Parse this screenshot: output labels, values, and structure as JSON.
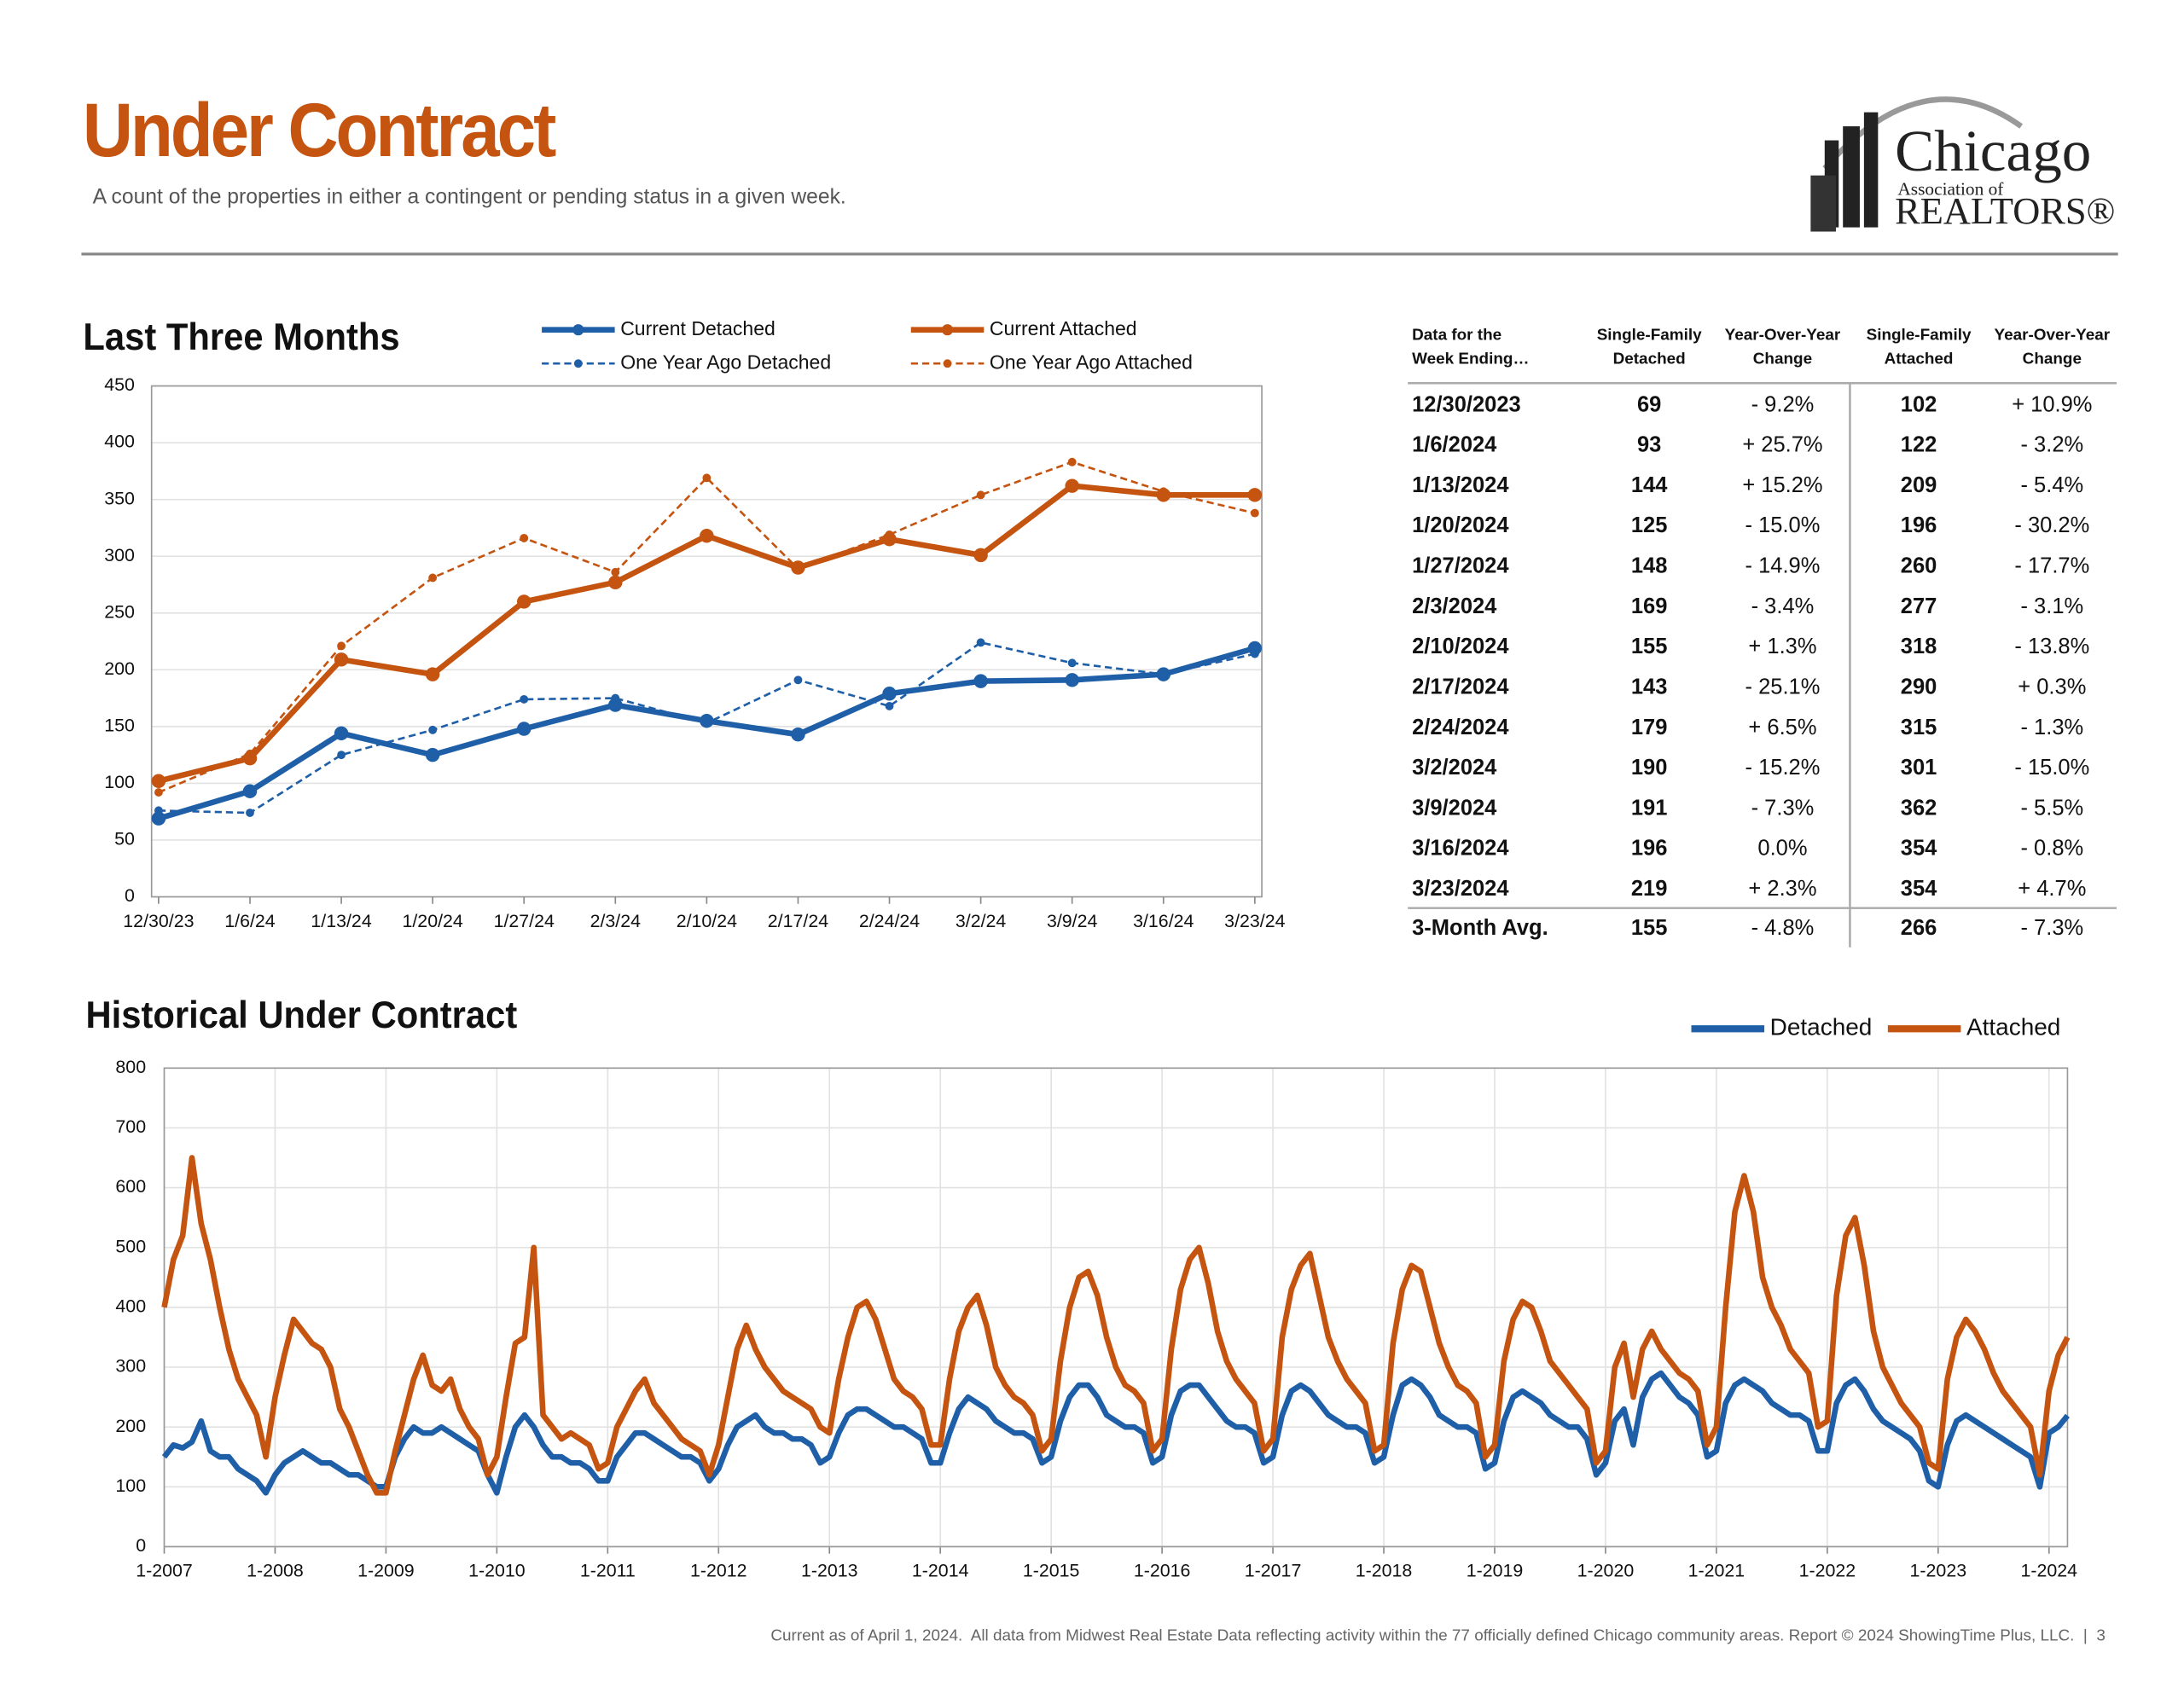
{
  "header": {
    "title": "Under Contract",
    "subtitle": "A count of the properties in either a contingent or pending status in a given week."
  },
  "logo": {
    "name": "Chicago",
    "line2": "Association of",
    "line3": "REALTORS®"
  },
  "chart_data": [
    {
      "type": "line",
      "title": "Last Three Months",
      "categories": [
        "12/30/23",
        "1/6/24",
        "1/13/24",
        "1/20/24",
        "1/27/24",
        "2/3/24",
        "2/10/24",
        "2/17/24",
        "2/24/24",
        "3/2/24",
        "3/9/24",
        "3/16/24",
        "3/23/24"
      ],
      "series": [
        {
          "name": "Current Detached",
          "color": "#1f5fa8",
          "line_style": "solid",
          "values": [
            69,
            93,
            144,
            125,
            148,
            169,
            155,
            143,
            179,
            190,
            191,
            196,
            219
          ]
        },
        {
          "name": "One Year Ago Detached",
          "color": "#1f5fa8",
          "line_style": "dashed",
          "values": [
            76,
            74,
            125,
            147,
            174,
            175,
            153,
            191,
            168,
            224,
            206,
            196,
            214
          ]
        },
        {
          "name": "Current Attached",
          "color": "#c4540f",
          "line_style": "solid",
          "values": [
            102,
            122,
            209,
            196,
            260,
            277,
            318,
            290,
            315,
            301,
            362,
            354,
            354
          ]
        },
        {
          "name": "One Year Ago Attached",
          "color": "#c4540f",
          "line_style": "dashed",
          "values": [
            92,
            126,
            221,
            281,
            316,
            286,
            369,
            289,
            319,
            354,
            383,
            357,
            338
          ]
        }
      ],
      "ylim": [
        0,
        450
      ],
      "yticks": [
        0,
        50,
        100,
        150,
        200,
        250,
        300,
        350,
        400,
        450
      ],
      "grid": true
    },
    {
      "type": "line",
      "title": "Historical Under Contract",
      "x": [
        "2007-01",
        "2007-02",
        "2007-03",
        "2007-04",
        "2007-05",
        "2007-06",
        "2007-07",
        "2007-08",
        "2007-09",
        "2007-10",
        "2007-11",
        "2007-12",
        "2008-01",
        "2008-02",
        "2008-03",
        "2008-04",
        "2008-05",
        "2008-06",
        "2008-07",
        "2008-08",
        "2008-09",
        "2008-10",
        "2008-11",
        "2008-12",
        "2009-01",
        "2009-02",
        "2009-03",
        "2009-04",
        "2009-05",
        "2009-06",
        "2009-07",
        "2009-08",
        "2009-09",
        "2009-10",
        "2009-11",
        "2009-12",
        "2010-01",
        "2010-02",
        "2010-03",
        "2010-04",
        "2010-05",
        "2010-06",
        "2010-07",
        "2010-08",
        "2010-09",
        "2010-10",
        "2010-11",
        "2010-12",
        "2011-01",
        "2011-02",
        "2011-03",
        "2011-04",
        "2011-05",
        "2011-06",
        "2011-07",
        "2011-08",
        "2011-09",
        "2011-10",
        "2011-11",
        "2011-12",
        "2012-01",
        "2012-02",
        "2012-03",
        "2012-04",
        "2012-05",
        "2012-06",
        "2012-07",
        "2012-08",
        "2012-09",
        "2012-10",
        "2012-11",
        "2012-12",
        "2013-01",
        "2013-02",
        "2013-03",
        "2013-04",
        "2013-05",
        "2013-06",
        "2013-07",
        "2013-08",
        "2013-09",
        "2013-10",
        "2013-11",
        "2013-12",
        "2014-01",
        "2014-02",
        "2014-03",
        "2014-04",
        "2014-05",
        "2014-06",
        "2014-07",
        "2014-08",
        "2014-09",
        "2014-10",
        "2014-11",
        "2014-12",
        "2015-01",
        "2015-02",
        "2015-03",
        "2015-04",
        "2015-05",
        "2015-06",
        "2015-07",
        "2015-08",
        "2015-09",
        "2015-10",
        "2015-11",
        "2015-12",
        "2016-01",
        "2016-02",
        "2016-03",
        "2016-04",
        "2016-05",
        "2016-06",
        "2016-07",
        "2016-08",
        "2016-09",
        "2016-10",
        "2016-11",
        "2016-12",
        "2017-01",
        "2017-02",
        "2017-03",
        "2017-04",
        "2017-05",
        "2017-06",
        "2017-07",
        "2017-08",
        "2017-09",
        "2017-10",
        "2017-11",
        "2017-12",
        "2018-01",
        "2018-02",
        "2018-03",
        "2018-04",
        "2018-05",
        "2018-06",
        "2018-07",
        "2018-08",
        "2018-09",
        "2018-10",
        "2018-11",
        "2018-12",
        "2019-01",
        "2019-02",
        "2019-03",
        "2019-04",
        "2019-05",
        "2019-06",
        "2019-07",
        "2019-08",
        "2019-09",
        "2019-10",
        "2019-11",
        "2019-12",
        "2020-01",
        "2020-02",
        "2020-03",
        "2020-04",
        "2020-05",
        "2020-06",
        "2020-07",
        "2020-08",
        "2020-09",
        "2020-10",
        "2020-11",
        "2020-12",
        "2021-01",
        "2021-02",
        "2021-03",
        "2021-04",
        "2021-05",
        "2021-06",
        "2021-07",
        "2021-08",
        "2021-09",
        "2021-10",
        "2021-11",
        "2021-12",
        "2022-01",
        "2022-02",
        "2022-03",
        "2022-04",
        "2022-05",
        "2022-06",
        "2022-07",
        "2022-08",
        "2022-09",
        "2022-10",
        "2022-11",
        "2022-12",
        "2023-01",
        "2023-02",
        "2023-03",
        "2023-04",
        "2023-05",
        "2023-06",
        "2023-07",
        "2023-08",
        "2023-09",
        "2023-10",
        "2023-11",
        "2023-12",
        "2024-01",
        "2024-02",
        "2024-03"
      ],
      "series": [
        {
          "name": "Detached",
          "color": "#1f5fa8",
          "values": [
            150,
            170,
            165,
            175,
            210,
            160,
            150,
            150,
            130,
            120,
            110,
            90,
            120,
            140,
            150,
            160,
            150,
            140,
            140,
            130,
            120,
            120,
            110,
            100,
            100,
            150,
            180,
            200,
            190,
            190,
            200,
            190,
            180,
            170,
            160,
            120,
            90,
            150,
            200,
            220,
            200,
            170,
            150,
            150,
            140,
            140,
            130,
            110,
            110,
            150,
            170,
            190,
            190,
            180,
            170,
            160,
            150,
            150,
            140,
            110,
            130,
            170,
            200,
            210,
            220,
            200,
            190,
            190,
            180,
            180,
            170,
            140,
            150,
            190,
            220,
            230,
            230,
            220,
            210,
            200,
            200,
            190,
            180,
            140,
            140,
            190,
            230,
            250,
            240,
            230,
            210,
            200,
            190,
            190,
            180,
            140,
            150,
            210,
            250,
            270,
            270,
            250,
            220,
            210,
            200,
            200,
            190,
            140,
            150,
            220,
            260,
            270,
            270,
            250,
            230,
            210,
            200,
            200,
            190,
            140,
            150,
            220,
            260,
            270,
            260,
            240,
            220,
            210,
            200,
            200,
            190,
            140,
            150,
            220,
            270,
            280,
            270,
            250,
            220,
            210,
            200,
            200,
            190,
            130,
            140,
            210,
            250,
            260,
            250,
            240,
            220,
            210,
            200,
            200,
            180,
            120,
            140,
            210,
            230,
            170,
            250,
            280,
            290,
            270,
            250,
            240,
            220,
            150,
            160,
            240,
            270,
            280,
            270,
            260,
            240,
            230,
            220,
            220,
            210,
            160,
            160,
            240,
            270,
            280,
            260,
            230,
            210,
            200,
            190,
            180,
            160,
            110,
            100,
            170,
            210,
            220,
            210,
            200,
            190,
            180,
            170,
            160,
            150,
            100,
            190,
            200,
            219
          ]
        },
        {
          "name": "Attached",
          "color": "#c4540f",
          "values": [
            400,
            480,
            520,
            650,
            540,
            480,
            400,
            330,
            280,
            250,
            220,
            150,
            250,
            320,
            380,
            360,
            340,
            330,
            300,
            230,
            200,
            160,
            120,
            90,
            90,
            160,
            220,
            280,
            320,
            270,
            260,
            280,
            230,
            200,
            180,
            120,
            150,
            250,
            340,
            350,
            500,
            220,
            200,
            180,
            190,
            180,
            170,
            130,
            140,
            200,
            230,
            260,
            280,
            240,
            220,
            200,
            180,
            170,
            160,
            120,
            170,
            250,
            330,
            370,
            330,
            300,
            280,
            260,
            250,
            240,
            230,
            200,
            190,
            280,
            350,
            400,
            410,
            380,
            330,
            280,
            260,
            250,
            230,
            170,
            170,
            280,
            360,
            400,
            420,
            370,
            300,
            270,
            250,
            240,
            220,
            160,
            180,
            310,
            400,
            450,
            460,
            420,
            350,
            300,
            270,
            260,
            240,
            160,
            180,
            330,
            430,
            480,
            500,
            440,
            360,
            310,
            280,
            260,
            240,
            160,
            180,
            350,
            430,
            470,
            490,
            420,
            350,
            310,
            280,
            260,
            240,
            160,
            170,
            340,
            430,
            470,
            460,
            400,
            340,
            300,
            270,
            260,
            240,
            150,
            170,
            310,
            380,
            410,
            400,
            360,
            310,
            290,
            270,
            250,
            230,
            140,
            160,
            300,
            340,
            250,
            330,
            360,
            330,
            310,
            290,
            280,
            260,
            170,
            200,
            400,
            560,
            620,
            560,
            450,
            400,
            370,
            330,
            310,
            290,
            200,
            210,
            420,
            520,
            550,
            470,
            360,
            300,
            270,
            240,
            220,
            200,
            140,
            130,
            280,
            350,
            380,
            360,
            330,
            290,
            260,
            240,
            220,
            200,
            120,
            260,
            320,
            350
          ]
        }
      ],
      "xlim": [
        "2007-01",
        "2024-03"
      ],
      "xticks": [
        {
          "value": "2007-01",
          "label": "1-2007"
        },
        {
          "value": "2008-01",
          "label": "1-2008"
        },
        {
          "value": "2009-01",
          "label": "1-2009"
        },
        {
          "value": "2010-01",
          "label": "1-2010"
        },
        {
          "value": "2011-01",
          "label": "1-2011"
        },
        {
          "value": "2012-01",
          "label": "1-2012"
        },
        {
          "value": "2013-01",
          "label": "1-2013"
        },
        {
          "value": "2014-01",
          "label": "1-2014"
        },
        {
          "value": "2015-01",
          "label": "1-2015"
        },
        {
          "value": "2016-01",
          "label": "1-2016"
        },
        {
          "value": "2017-01",
          "label": "1-2017"
        },
        {
          "value": "2018-01",
          "label": "1-2018"
        },
        {
          "value": "2019-01",
          "label": "1-2019"
        },
        {
          "value": "2020-01",
          "label": "1-2020"
        },
        {
          "value": "2021-01",
          "label": "1-2021"
        },
        {
          "value": "2022-01",
          "label": "1-2022"
        },
        {
          "value": "2023-01",
          "label": "1-2023"
        },
        {
          "value": "2024-01",
          "label": "1-2024"
        }
      ],
      "ylim": [
        0,
        800
      ],
      "yticks": [
        0,
        100,
        200,
        300,
        400,
        500,
        600,
        700,
        800
      ],
      "grid": true
    }
  ],
  "table": {
    "header": [
      [
        "Data for the",
        "Week Ending…"
      ],
      [
        "Single-Family",
        "Detached"
      ],
      [
        "Year-Over-Year",
        "Change"
      ],
      [
        "Single-Family",
        "Attached"
      ],
      [
        "Year-Over-Year",
        "Change"
      ]
    ],
    "rows": [
      [
        "12/30/2023",
        "69",
        "- 9.2%",
        "102",
        "+ 10.9%"
      ],
      [
        "1/6/2024",
        "93",
        "+ 25.7%",
        "122",
        "- 3.2%"
      ],
      [
        "1/13/2024",
        "144",
        "+ 15.2%",
        "209",
        "- 5.4%"
      ],
      [
        "1/20/2024",
        "125",
        "- 15.0%",
        "196",
        "- 30.2%"
      ],
      [
        "1/27/2024",
        "148",
        "- 14.9%",
        "260",
        "- 17.7%"
      ],
      [
        "2/3/2024",
        "169",
        "- 3.4%",
        "277",
        "- 3.1%"
      ],
      [
        "2/10/2024",
        "155",
        "+ 1.3%",
        "318",
        "- 13.8%"
      ],
      [
        "2/17/2024",
        "143",
        "- 25.1%",
        "290",
        "+ 0.3%"
      ],
      [
        "2/24/2024",
        "179",
        "+ 6.5%",
        "315",
        "- 1.3%"
      ],
      [
        "3/2/2024",
        "190",
        "- 15.2%",
        "301",
        "- 15.0%"
      ],
      [
        "3/9/2024",
        "191",
        "- 7.3%",
        "362",
        "- 5.5%"
      ],
      [
        "3/16/2024",
        "196",
        "0.0%",
        "354",
        "- 0.8%"
      ],
      [
        "3/23/2024",
        "219",
        "+ 2.3%",
        "354",
        "+ 4.7%"
      ]
    ],
    "summary": [
      "3-Month Avg.",
      "155",
      "- 4.8%",
      "266",
      "- 7.3%"
    ]
  },
  "footer": "Current as of April 1, 2024.  All data from Midwest Real Estate Data reflecting activity within the 77 officially defined Chicago community areas. Report © 2024 ShowingTime Plus, LLC.  |  3"
}
